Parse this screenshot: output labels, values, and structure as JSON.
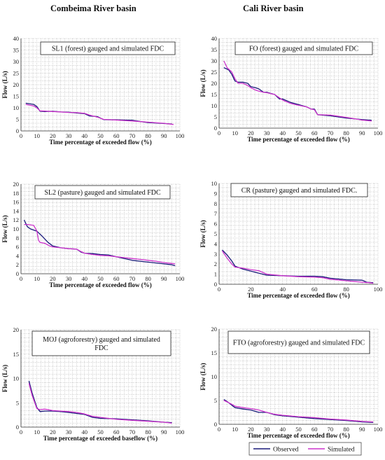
{
  "headers": {
    "left": "Combeima River basin",
    "right": "Cali River basin"
  },
  "colors": {
    "observed": "#1a1a7a",
    "simulated": "#cc33cc",
    "grid": "#9a9a9a"
  },
  "chart_data": [
    {
      "type": "line",
      "title": "SL1 (forest) gauged and simulated FDC",
      "xlabel": "Time percentage of exceeded flow (%)",
      "ylabel": "Flow (L/s)",
      "xlim": [
        0,
        100
      ],
      "ylim": [
        0,
        40
      ],
      "xticks": [
        0,
        10,
        20,
        30,
        40,
        50,
        60,
        70,
        80,
        90,
        100
      ],
      "yticks": [
        0,
        5,
        10,
        15,
        20,
        25,
        30,
        35,
        40
      ],
      "grid": true,
      "series": [
        {
          "key": "observed",
          "x": [
            3,
            8,
            10,
            12,
            15,
            20,
            25,
            30,
            35,
            40,
            43,
            48,
            52,
            60,
            70,
            80,
            90,
            95
          ],
          "y": [
            12,
            11.5,
            10.5,
            8.5,
            8.4,
            8.5,
            8.2,
            8.1,
            7.8,
            7.5,
            6.5,
            6.2,
            4.9,
            4.8,
            4.6,
            3.6,
            3.2,
            3.0
          ]
        },
        {
          "key": "simulated",
          "x": [
            3,
            8,
            10,
            12,
            15,
            20,
            25,
            30,
            35,
            40,
            43,
            48,
            52,
            60,
            70,
            80,
            90,
            96
          ],
          "y": [
            11.5,
            10.8,
            10,
            8.7,
            8.6,
            8.4,
            8.2,
            8.0,
            7.9,
            7.6,
            6.9,
            6.0,
            5.0,
            4.7,
            4.3,
            3.8,
            3.3,
            2.8
          ]
        }
      ]
    },
    {
      "type": "line",
      "title": "FO (forest) gauged and simulated FDC",
      "xlabel": "Time percentage of exceeded flow (%)",
      "ylabel": "Flow (L/s)",
      "xlim": [
        0,
        100
      ],
      "ylim": [
        0,
        40
      ],
      "xticks": [
        0,
        10,
        20,
        30,
        40,
        50,
        60,
        70,
        80,
        90,
        100
      ],
      "yticks": [
        0,
        5,
        10,
        15,
        20,
        25,
        30,
        35,
        40
      ],
      "grid": true,
      "series": [
        {
          "key": "observed",
          "x": [
            3,
            6,
            8,
            10,
            12,
            15,
            18,
            20,
            23,
            25,
            28,
            30,
            35,
            38,
            40,
            45,
            50,
            55,
            58,
            60,
            62,
            70,
            80,
            90,
            96
          ],
          "y": [
            27,
            26,
            24,
            21,
            20.5,
            20.5,
            20,
            18.5,
            18,
            17.5,
            16,
            16,
            15,
            13,
            13,
            11.5,
            10.5,
            9.5,
            8.5,
            8.5,
            6,
            5.5,
            4.5,
            3.8,
            3.5
          ]
        },
        {
          "key": "simulated",
          "x": [
            3,
            5,
            8,
            10,
            12,
            15,
            18,
            20,
            23,
            25,
            28,
            30,
            35,
            38,
            40,
            45,
            50,
            55,
            58,
            60,
            62,
            70,
            80,
            90,
            96
          ],
          "y": [
            30,
            27,
            25,
            22,
            20,
            20,
            19,
            18,
            17,
            16.5,
            16,
            15.8,
            15,
            13.5,
            12.5,
            11,
            10.2,
            9.5,
            8.5,
            8.2,
            6,
            5.8,
            4.8,
            3.6,
            3.2
          ]
        }
      ]
    },
    {
      "type": "line",
      "title": "SL2 (pasture) gauged and simulated FDC",
      "xlabel": "Time percentage of exceeded flow (%)",
      "ylabel": "Flow (L/s)",
      "xlim": [
        0,
        100
      ],
      "ylim": [
        0,
        20
      ],
      "xticks": [
        0,
        10,
        20,
        30,
        40,
        50,
        60,
        70,
        80,
        90,
        100
      ],
      "yticks": [
        0,
        2,
        4,
        6,
        8,
        10,
        12,
        14,
        16,
        18,
        20
      ],
      "grid": true,
      "series": [
        {
          "key": "observed",
          "x": [
            2,
            4,
            6,
            10,
            13,
            17,
            20,
            25,
            30,
            35,
            38,
            40,
            45,
            50,
            55,
            60,
            65,
            70,
            75,
            80,
            85,
            90,
            95,
            97
          ],
          "y": [
            12,
            10.5,
            10,
            9.5,
            8.5,
            7,
            6.2,
            5.8,
            5.6,
            5.5,
            4.8,
            4.6,
            4.5,
            4.3,
            4.2,
            3.8,
            3.4,
            3.0,
            2.8,
            2.6,
            2.4,
            2.2,
            2.0,
            1.8
          ]
        },
        {
          "key": "simulated",
          "x": [
            2,
            4,
            8,
            10,
            11,
            12,
            15,
            18,
            20,
            25,
            30,
            35,
            38,
            40,
            45,
            50,
            55,
            60,
            65,
            70,
            75,
            80,
            85,
            90,
            95,
            97
          ],
          "y": [
            11,
            11,
            10.8,
            9.5,
            7.5,
            7,
            6.8,
            6.2,
            6,
            5.8,
            5.6,
            5.5,
            4.9,
            4.6,
            4.3,
            4.1,
            4.0,
            3.8,
            3.6,
            3.4,
            3.2,
            3.0,
            2.8,
            2.5,
            2.3,
            2.2
          ]
        }
      ]
    },
    {
      "type": "line",
      "title": "CR (pasture) gauged and simulated FDC.",
      "xlabel": "Time percentage of exceeded flow (%)",
      "ylabel": "Flow (L/s)",
      "xlim": [
        0,
        100
      ],
      "ylim": [
        0,
        10
      ],
      "xticks": [
        0,
        20,
        40,
        60,
        80,
        100
      ],
      "yticks": [
        0,
        1,
        2,
        3,
        4,
        5,
        6,
        7,
        8,
        9,
        10
      ],
      "grid": true,
      "series": [
        {
          "key": "observed",
          "x": [
            2,
            5,
            8,
            10,
            15,
            20,
            25,
            30,
            40,
            50,
            60,
            65,
            70,
            80,
            90,
            93,
            97
          ],
          "y": [
            3.4,
            2.9,
            2.3,
            1.8,
            1.5,
            1.3,
            1.1,
            0.9,
            0.85,
            0.8,
            0.8,
            0.75,
            0.6,
            0.45,
            0.4,
            0.2,
            0.15
          ]
        },
        {
          "key": "simulated",
          "x": [
            2,
            5,
            8,
            10,
            15,
            20,
            25,
            30,
            40,
            50,
            60,
            65,
            70,
            80,
            90,
            95,
            97
          ],
          "y": [
            3.3,
            2.6,
            2.0,
            1.7,
            1.6,
            1.45,
            1.35,
            1.0,
            0.85,
            0.75,
            0.7,
            0.65,
            0.5,
            0.35,
            0.2,
            0.15,
            0.1
          ]
        }
      ]
    },
    {
      "type": "line",
      "title": "MOJ (agroforestry) gauged and simulated FDC",
      "xlabel": "Time percentage of exceeded baseflow (%)",
      "ylabel": "Flow (L/s)",
      "xlim": [
        0,
        100
      ],
      "ylim": [
        0,
        20
      ],
      "xticks": [
        0,
        10,
        20,
        30,
        40,
        50,
        60,
        70,
        80,
        90,
        100
      ],
      "yticks": [
        0,
        5,
        10,
        15,
        20
      ],
      "grid": true,
      "series": [
        {
          "key": "observed",
          "x": [
            5,
            7,
            10,
            12,
            15,
            20,
            25,
            30,
            35,
            40,
            45,
            50,
            60,
            70,
            80,
            90,
            95
          ],
          "y": [
            9.5,
            7,
            4,
            3.2,
            3.3,
            3.3,
            3.2,
            3.0,
            2.8,
            2.6,
            2.0,
            1.8,
            1.7,
            1.5,
            1.3,
            1.0,
            0.9
          ]
        },
        {
          "key": "simulated",
          "x": [
            5,
            7,
            10,
            12,
            15,
            20,
            25,
            30,
            35,
            40,
            45,
            50,
            60,
            70,
            80,
            90,
            95
          ],
          "y": [
            9.0,
            6.5,
            3.8,
            3.6,
            3.7,
            3.4,
            3.3,
            3.2,
            3.0,
            2.7,
            2.2,
            2.0,
            1.6,
            1.4,
            1.2,
            1.0,
            0.8
          ]
        }
      ]
    },
    {
      "type": "line",
      "title": "FTO (agroforestry) gauged and simulated FDC",
      "xlabel": "Time percentage of exceeded flow (%)",
      "ylabel": "Flow (L/s)",
      "xlim": [
        0,
        100
      ],
      "ylim": [
        0,
        20
      ],
      "xticks": [
        0,
        10,
        20,
        30,
        40,
        50,
        60,
        70,
        80,
        90,
        100
      ],
      "yticks": [
        0,
        5,
        10,
        15,
        20
      ],
      "grid": true,
      "legend": {
        "position": "bottom",
        "entries": [
          "Observed",
          "Simulated"
        ]
      },
      "series": [
        {
          "key": "observed",
          "name": "Observed",
          "x": [
            3,
            5,
            8,
            10,
            15,
            20,
            25,
            30,
            35,
            40,
            50,
            60,
            70,
            80,
            90,
            97
          ],
          "y": [
            5.2,
            4.8,
            4.0,
            3.5,
            3.2,
            3.0,
            2.5,
            2.5,
            2.0,
            1.8,
            1.5,
            1.2,
            1.0,
            0.8,
            0.5,
            0.4
          ]
        },
        {
          "key": "simulated",
          "name": "Simulated",
          "x": [
            3,
            5,
            8,
            10,
            15,
            20,
            25,
            30,
            35,
            40,
            50,
            60,
            70,
            80,
            90,
            97
          ],
          "y": [
            5.0,
            4.7,
            4.2,
            3.8,
            3.5,
            3.3,
            3.0,
            2.5,
            2.1,
            1.9,
            1.6,
            1.4,
            1.1,
            0.9,
            0.6,
            0.5
          ]
        }
      ]
    }
  ]
}
